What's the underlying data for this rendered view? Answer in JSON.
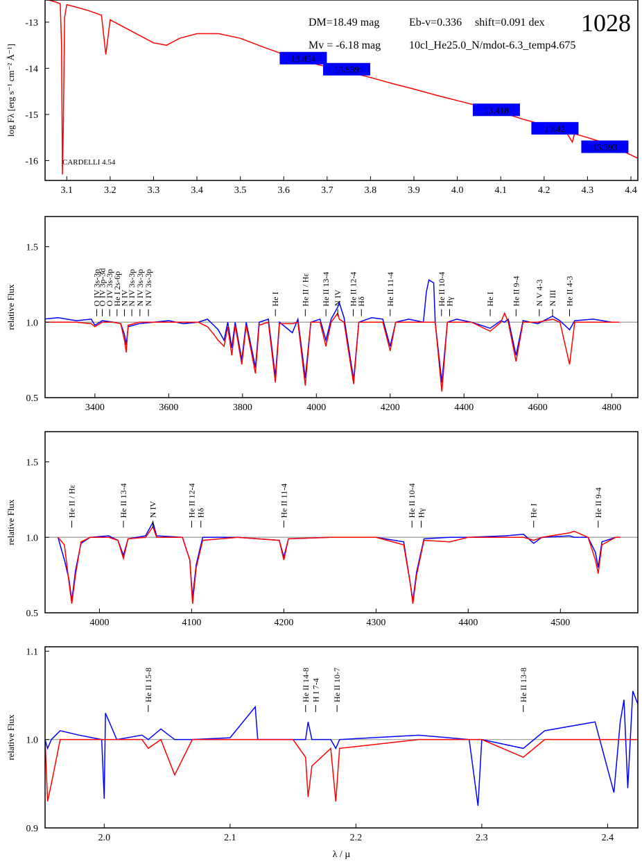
{
  "chart_data": [
    {
      "type": "line",
      "ylabel": "log Fλ [erg s⁻¹ cm⁻² Å⁻¹]",
      "xlim": [
        3.05,
        4.416
      ],
      "ylim": [
        -16.43,
        -12.52
      ],
      "xticks": [
        3.1,
        3.2,
        3.3,
        3.4,
        3.5,
        3.6,
        3.7,
        3.8,
        3.9,
        {
          "value": 4,
          "label": "4.0"
        },
        4.1,
        4.2,
        4.3,
        4.4
      ],
      "yticks": [
        -13,
        -14,
        -15,
        -16
      ],
      "annotations": [
        "DM=18.49 mag",
        "Eb-v=0.336",
        "shift=0.091 dex",
        "1028",
        "Mv =  -6.18 mag",
        "10cl_He25.0_N/mdot-6.3_temp4.675",
        "CARDELLI 4.54"
      ],
      "x": [
        3.05,
        3.07,
        3.085,
        3.088,
        3.09,
        3.092,
        3.095,
        3.1,
        3.12,
        3.15,
        3.18,
        3.19,
        3.2,
        3.25,
        3.3,
        3.33,
        3.36,
        3.4,
        3.45,
        3.5,
        3.55,
        3.6,
        3.65,
        3.7,
        3.75,
        3.8,
        3.85,
        3.9,
        3.95,
        4.0,
        4.05,
        4.1,
        4.15,
        4.2,
        4.25,
        4.265,
        4.27,
        4.3,
        4.35,
        4.416
      ],
      "series": [
        {
          "color": "#ff0000",
          "values": [
            -12.5,
            -12.55,
            -12.6,
            -13.5,
            -16.3,
            -15.3,
            -12.9,
            -12.62,
            -12.67,
            -12.75,
            -12.85,
            -13.7,
            -12.95,
            -13.2,
            -13.45,
            -13.5,
            -13.35,
            -13.25,
            -13.25,
            -13.35,
            -13.53,
            -13.7,
            -13.85,
            -13.97,
            -14.08,
            -14.2,
            -14.33,
            -14.45,
            -14.58,
            -14.7,
            -14.82,
            -14.95,
            -15.1,
            -15.23,
            -15.37,
            -15.6,
            -15.42,
            -15.5,
            -15.65,
            -15.95
          ]
        }
      ],
      "photometry": {
        "color": "#0000ff",
        "x": [
          3.645,
          3.745,
          4.09,
          4.225,
          4.34
        ],
        "y": [
          -13.78,
          -14.02,
          -14.9,
          -15.3,
          -15.7
        ],
        "mag": [
          13.854,
          13.839,
          13.418,
          13.42,
          13.393
        ]
      }
    },
    {
      "type": "line",
      "ylabel": "relative Flux",
      "reference": 1,
      "xlim": [
        3265,
        4871
      ],
      "ylim": [
        0.5,
        1.7
      ],
      "xticks": [
        3400,
        3600,
        3800,
        4000,
        4200,
        4400,
        4600,
        4800
      ],
      "yticks": [
        0.5,
        {
          "value": 1,
          "label": "1.0"
        },
        1.5
      ],
      "line_labels": [
        {
          "x": 3405,
          "text": "O IV 3s-3p"
        },
        {
          "x": 3420,
          "text": "O IV 3p-3d"
        },
        {
          "x": 3440,
          "text": "O IV 3s-3p"
        },
        {
          "x": 3460,
          "text": "He I 2s-6p"
        },
        {
          "x": 3480,
          "text": "N IV"
        },
        {
          "x": 3500,
          "text": "N IV 3s-3p"
        },
        {
          "x": 3522,
          "text": "N IV 3s-3p"
        },
        {
          "x": 3545,
          "text": "N IV 3s-3p"
        },
        {
          "x": 3889,
          "text": "He I"
        },
        {
          "x": 3970,
          "text": "He II / Hε"
        },
        {
          "x": 4026,
          "text": "He II 13-4"
        },
        {
          "x": 4058,
          "text": "N IV"
        },
        {
          "x": 4100,
          "text": "He II 12-4"
        },
        {
          "x": 4122,
          "text": "Hδ"
        },
        {
          "x": 4200,
          "text": "He II 11-4"
        },
        {
          "x": 4339,
          "text": "He II 10-4"
        },
        {
          "x": 4361,
          "text": "Hγ"
        },
        {
          "x": 4471,
          "text": "He I"
        },
        {
          "x": 4541,
          "text": "He II 9-4"
        },
        {
          "x": 4604,
          "text": "N V 4-3"
        },
        {
          "x": 4640,
          "text": "N III"
        },
        {
          "x": 4686,
          "text": "He II 4-3"
        }
      ],
      "x": [
        3260,
        3300,
        3350,
        3390,
        3400,
        3420,
        3450,
        3470,
        3480,
        3485,
        3490,
        3520,
        3560,
        3600,
        3640,
        3680,
        3705,
        3722,
        3734,
        3750,
        3760,
        3771,
        3780,
        3798,
        3810,
        3835,
        3845,
        3870,
        3889,
        3900,
        3935,
        3950,
        3970,
        3985,
        4010,
        4026,
        4040,
        4058,
        4062,
        4075,
        4101,
        4115,
        4150,
        4180,
        4200,
        4215,
        4250,
        4290,
        4298,
        4305,
        4318,
        4322,
        4340,
        4355,
        4380,
        4420,
        4471,
        4500,
        4510,
        4520,
        4541,
        4560,
        4600,
        4640,
        4660,
        4686,
        4700,
        4750,
        4800,
        4820
      ],
      "series": [
        {
          "color": "#0000ff",
          "values": [
            1.02,
            1.03,
            1.01,
            1.02,
            0.98,
            1.01,
            1.0,
            0.99,
            0.92,
            0.85,
            0.97,
            0.99,
            1.0,
            1.01,
            0.99,
            1.0,
            1.02,
            0.98,
            0.95,
            0.88,
            1.0,
            0.83,
            1.0,
            0.75,
            1.0,
            0.7,
            1.0,
            1.02,
            0.64,
            1.0,
            0.93,
            1.02,
            0.63,
            1.0,
            1.02,
            0.88,
            1.02,
            1.1,
            1.13,
            1.03,
            0.62,
            1.0,
            1.03,
            1.02,
            0.84,
            1.0,
            1.02,
            1.0,
            1.2,
            1.28,
            1.26,
            1.0,
            0.6,
            1.0,
            1.02,
            1.0,
            0.96,
            1.01,
            1.0,
            1.02,
            0.78,
            1.01,
            0.99,
            1.04,
            1.01,
            0.95,
            1.01,
            1.02,
            1.0,
            1.0
          ]
        },
        {
          "color": "#ff0000",
          "values": [
            1.0,
            1.0,
            1.0,
            0.99,
            0.97,
            1.0,
            1.0,
            0.99,
            0.88,
            0.8,
            0.98,
            1.0,
            1.0,
            1.0,
            1.0,
            1.0,
            0.97,
            0.92,
            0.88,
            0.84,
            0.97,
            0.78,
            0.98,
            0.72,
            0.98,
            0.66,
            0.98,
            1.0,
            0.6,
            0.99,
            0.99,
            1.0,
            0.58,
            1.0,
            1.0,
            0.84,
            1.0,
            1.06,
            1.02,
            1.0,
            0.59,
            1.0,
            1.0,
            1.0,
            0.81,
            1.0,
            1.0,
            1.0,
            1.0,
            1.0,
            1.0,
            1.0,
            0.54,
            1.0,
            1.0,
            1.0,
            0.94,
            1.0,
            1.06,
            1.0,
            0.74,
            1.0,
            1.0,
            1.02,
            1.0,
            0.72,
            1.0,
            1.0,
            1.0,
            1.0
          ]
        }
      ]
    },
    {
      "type": "line",
      "ylabel": "relative Flux",
      "reference": 1,
      "xlim": [
        3941,
        4584
      ],
      "ylim": [
        0.5,
        1.7
      ],
      "xticks": [
        4000,
        4100,
        4200,
        4300,
        4400,
        4500
      ],
      "yticks": [
        0.5,
        {
          "value": 1,
          "label": "1.0"
        },
        1.5
      ],
      "line_labels": [
        {
          "x": 3970,
          "text": "He II / Hε"
        },
        {
          "x": 4026,
          "text": "He II 13-4"
        },
        {
          "x": 4058,
          "text": "N IV"
        },
        {
          "x": 4100,
          "text": "He II 12-4"
        },
        {
          "x": 4110,
          "text": "Hδ"
        },
        {
          "x": 4200,
          "text": "He II 11-4"
        },
        {
          "x": 4339,
          "text": "He II 10-4"
        },
        {
          "x": 4349,
          "text": "Hγ"
        },
        {
          "x": 4471,
          "text": "He I"
        },
        {
          "x": 4541,
          "text": "He II 9-4"
        }
      ],
      "x": [
        3955,
        3962,
        3967,
        3970,
        3974,
        3980,
        3990,
        4010,
        4020,
        4026,
        4031,
        4050,
        4058,
        4062,
        4090,
        4098,
        4101,
        4105,
        4112,
        4150,
        4195,
        4200,
        4205,
        4250,
        4300,
        4330,
        4337,
        4340,
        4344,
        4352,
        4380,
        4400,
        4440,
        4460,
        4471,
        4480,
        4510,
        4515,
        4530,
        4538,
        4541,
        4545,
        4560,
        4565
      ],
      "series": [
        {
          "color": "#0000ff",
          "values": [
            1.0,
            0.85,
            0.72,
            0.58,
            0.78,
            0.96,
            1.0,
            1.01,
            0.98,
            0.88,
            0.99,
            1.01,
            1.1,
            1.01,
            1.0,
            0.85,
            0.6,
            0.82,
            1.0,
            1.0,
            0.98,
            0.87,
            0.99,
            1.0,
            1.0,
            0.97,
            0.7,
            0.58,
            0.77,
            0.99,
            1.0,
            1.0,
            1.01,
            1.02,
            0.96,
            1.0,
            1.01,
            1.0,
            1.0,
            0.9,
            0.8,
            0.97,
            1.0,
            1.0
          ]
        },
        {
          "color": "#ff0000",
          "values": [
            1.0,
            0.95,
            0.7,
            0.56,
            0.75,
            0.97,
            1.0,
            1.0,
            0.98,
            0.86,
            0.99,
            1.0,
            1.07,
            1.0,
            1.0,
            0.85,
            0.56,
            0.8,
            0.98,
            1.0,
            0.98,
            0.85,
            0.99,
            1.0,
            1.0,
            0.95,
            0.7,
            0.56,
            0.75,
            0.98,
            0.97,
            1.0,
            1.0,
            1.0,
            0.98,
            1.0,
            1.03,
            1.04,
            1.0,
            0.85,
            0.76,
            0.95,
            1.0,
            1.0
          ]
        }
      ]
    },
    {
      "type": "line",
      "ylabel": "relative Flux",
      "xlabel": "λ / µ",
      "reference": 1,
      "xlim": [
        1.953,
        2.424
      ],
      "ylim": [
        0.9,
        1.105
      ],
      "xticks": [
        {
          "value": 2,
          "label": "2.0"
        },
        2.1,
        2.2,
        2.3,
        2.4
      ],
      "yticks": [
        0.9,
        {
          "value": 1,
          "label": "1.0"
        },
        1.1
      ],
      "line_labels": [
        {
          "x": 2.035,
          "text": "He II 15-8"
        },
        {
          "x": 2.16,
          "text": "He II 14-8"
        },
        {
          "x": 2.168,
          "text": "H I 7-4"
        },
        {
          "x": 2.185,
          "text": "He II 10-7"
        },
        {
          "x": 2.333,
          "text": "He II 13-8"
        }
      ],
      "x": [
        1.953,
        1.955,
        1.958,
        1.965,
        1.98,
        1.998,
        2.0,
        2.001,
        2.01,
        2.03,
        2.035,
        2.045,
        2.056,
        2.07,
        2.1,
        2.12,
        2.122,
        2.15,
        2.16,
        2.162,
        2.165,
        2.18,
        2.184,
        2.187,
        2.25,
        2.29,
        2.297,
        2.3,
        2.333,
        2.35,
        2.39,
        2.405,
        2.41,
        2.413,
        2.416,
        2.42,
        2.424
      ],
      "series": [
        {
          "color": "#0000ff",
          "values": [
            1.0,
            0.99,
            1.0,
            1.01,
            1.005,
            1.0,
            0.933,
            1.03,
            1.0,
            1.005,
            1.0,
            1.012,
            1.0,
            1.0,
            1.002,
            1.037,
            1.0,
            1.0,
            1.0,
            1.02,
            1.0,
            1.0,
            0.99,
            1.0,
            1.005,
            1.0,
            0.925,
            1.0,
            0.99,
            1.01,
            1.02,
            0.94,
            1.02,
            1.045,
            0.945,
            1.055,
            1.04
          ]
        },
        {
          "color": "#ff0000",
          "values": [
            1.0,
            0.93,
            0.95,
            1.0,
            1.0,
            1.0,
            1.0,
            1.0,
            1.0,
            1.0,
            0.99,
            1.0,
            0.96,
            1.0,
            1.0,
            1.0,
            1.0,
            1.0,
            0.98,
            0.935,
            0.97,
            0.99,
            0.93,
            0.99,
            1.0,
            1.0,
            1.0,
            1.0,
            0.98,
            1.0,
            1.0,
            1.0,
            1.0,
            1.0,
            1.0,
            1.0,
            1.0
          ]
        }
      ]
    }
  ]
}
